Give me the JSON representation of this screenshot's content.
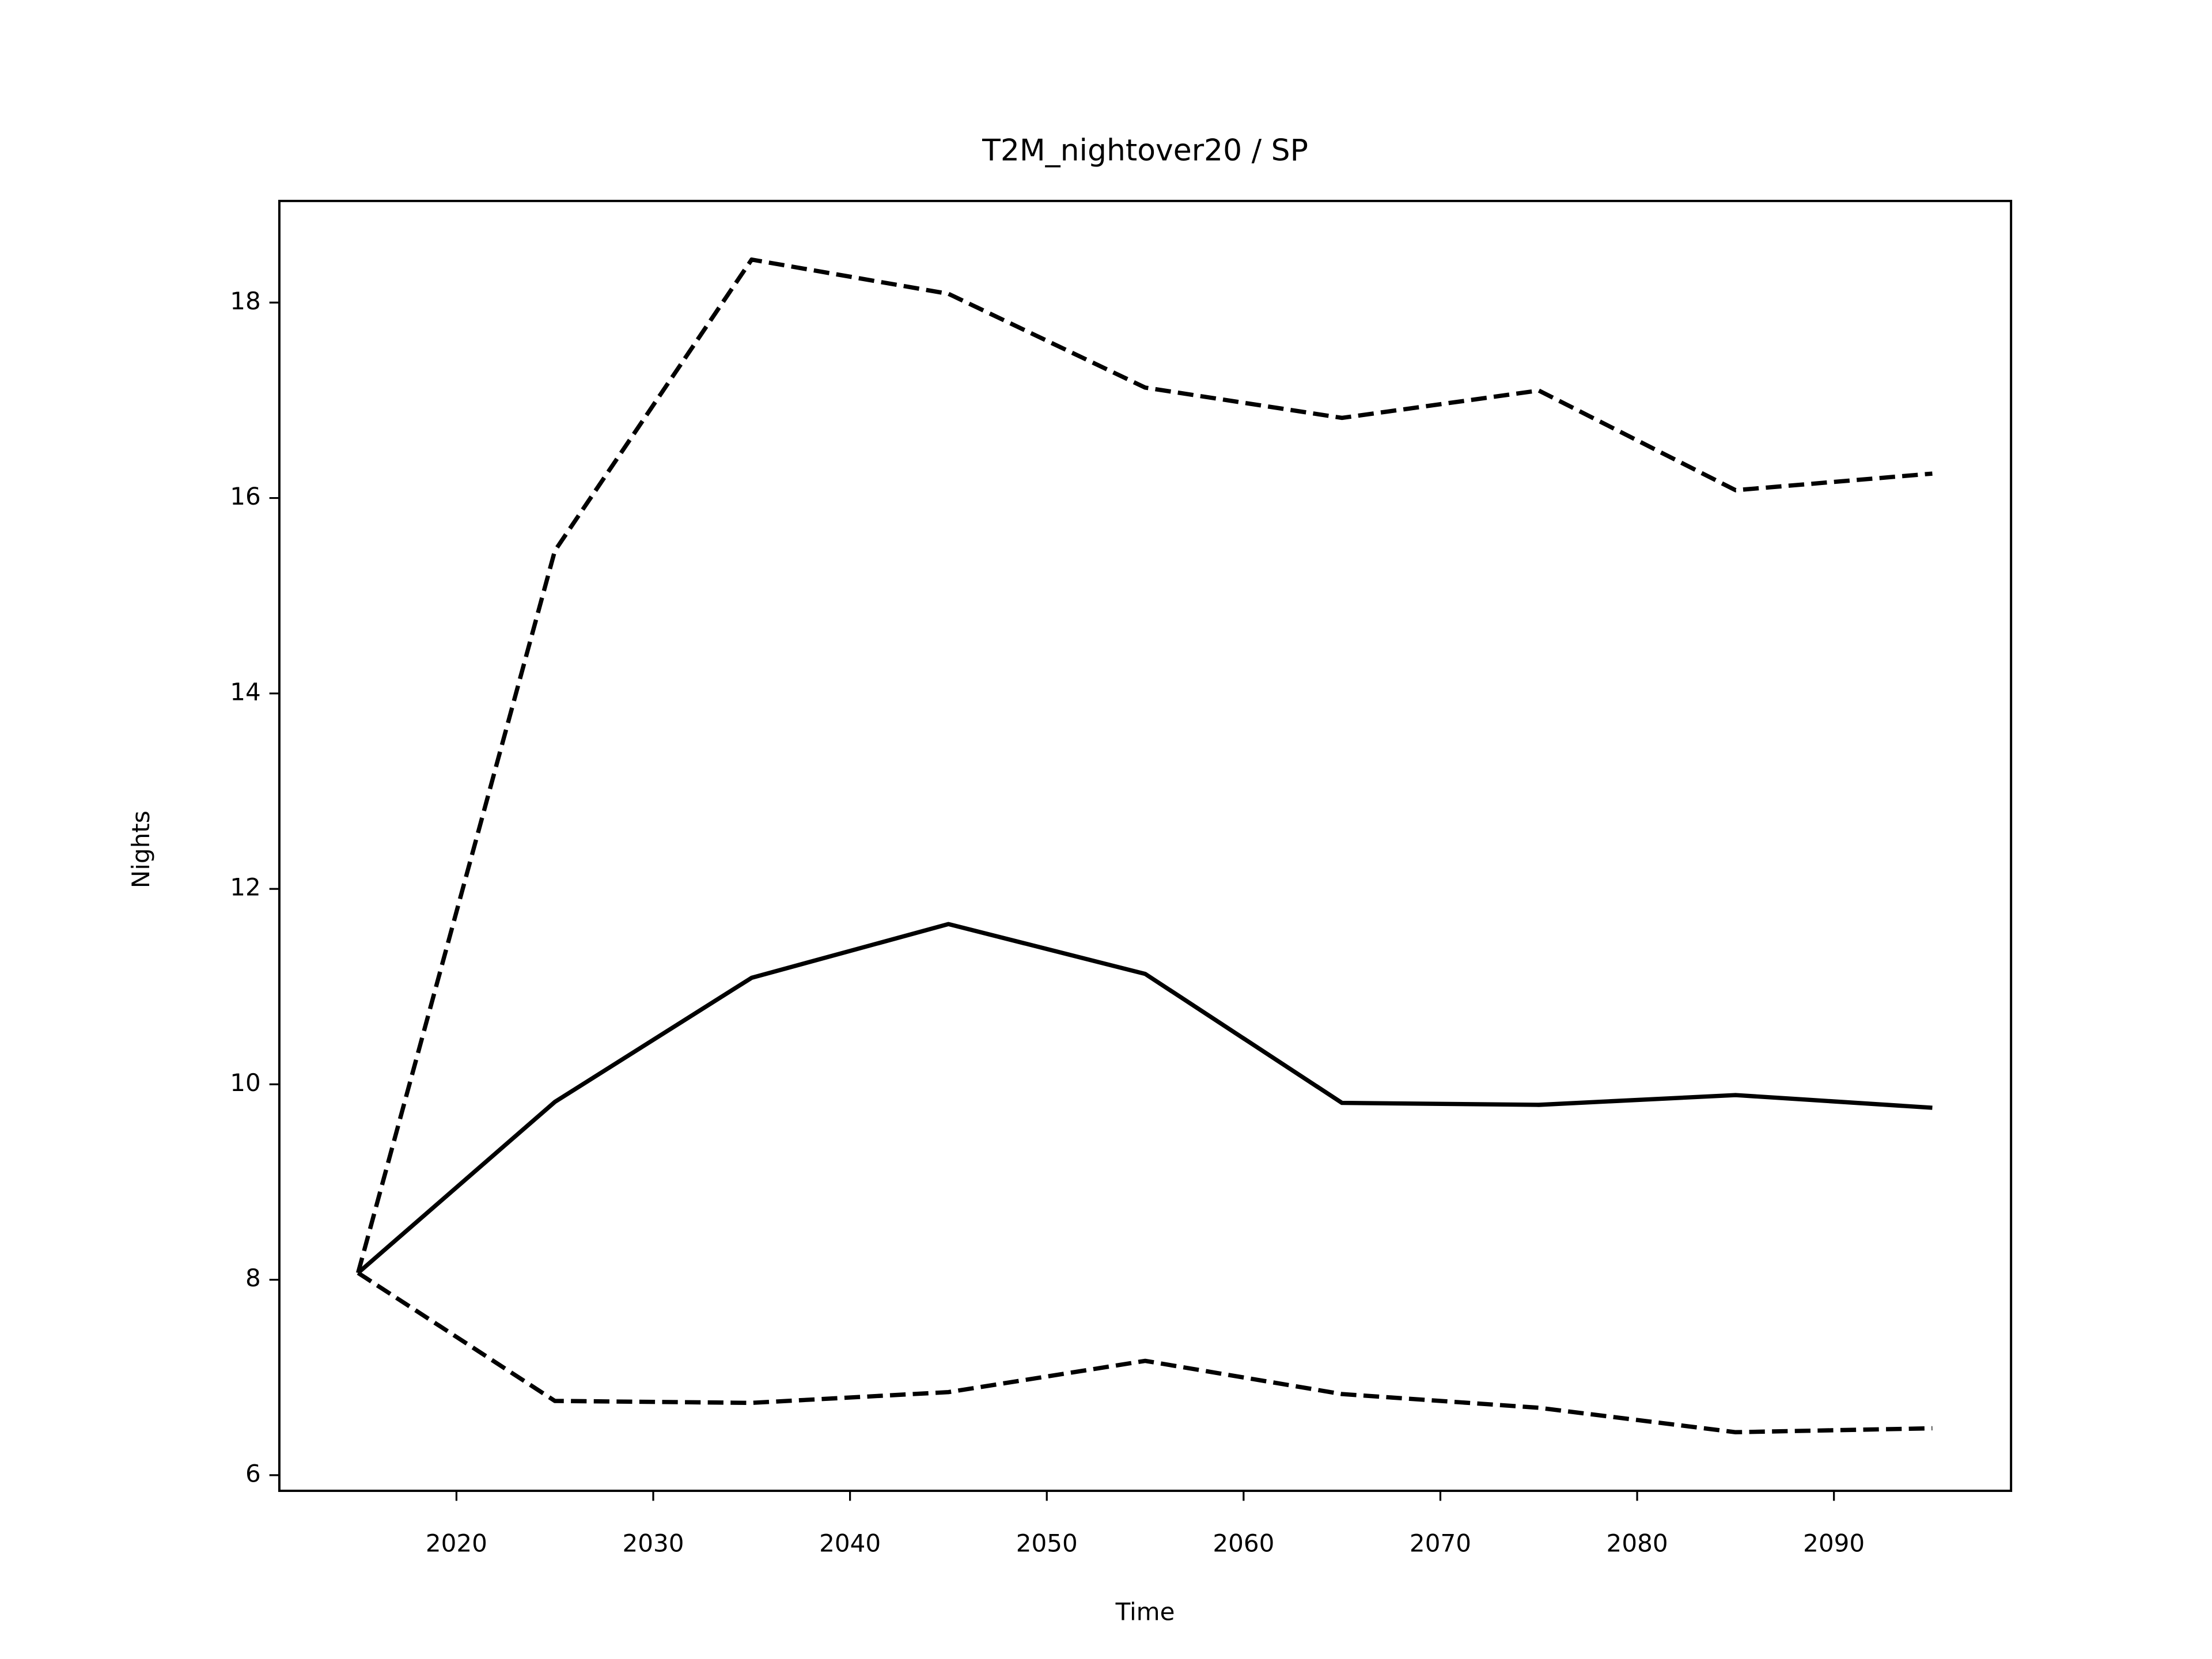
{
  "chart_data": {
    "type": "line",
    "title": "T2M_nightover20 / SP",
    "x_label": "Time",
    "y_label": "Nights",
    "x": [
      2015,
      2025,
      2035,
      2045,
      2055,
      2065,
      2075,
      2085,
      2095
    ],
    "series": [
      {
        "color": "#000000",
        "dashed": false,
        "values": [
          8.07,
          9.82,
          11.09,
          11.64,
          11.13,
          9.81,
          9.79,
          9.89,
          9.76
        ]
      },
      {
        "color": "#000000",
        "dashed": true,
        "values": [
          8.07,
          15.46,
          18.44,
          18.09,
          17.13,
          16.82,
          17.1,
          16.08,
          16.25
        ]
      },
      {
        "color": "#000000",
        "dashed": true,
        "values": [
          8.07,
          6.76,
          6.74,
          6.85,
          7.17,
          6.83,
          6.69,
          6.44,
          6.48
        ]
      }
    ],
    "xlim": [
      2011,
      2099
    ],
    "ylim": [
      5.84,
      19.04
    ],
    "xticks": [
      2020,
      2030,
      2040,
      2050,
      2060,
      2070,
      2080,
      2090
    ],
    "yticks": [
      6,
      8,
      10,
      12,
      14,
      16,
      18
    ],
    "grid": false
  }
}
